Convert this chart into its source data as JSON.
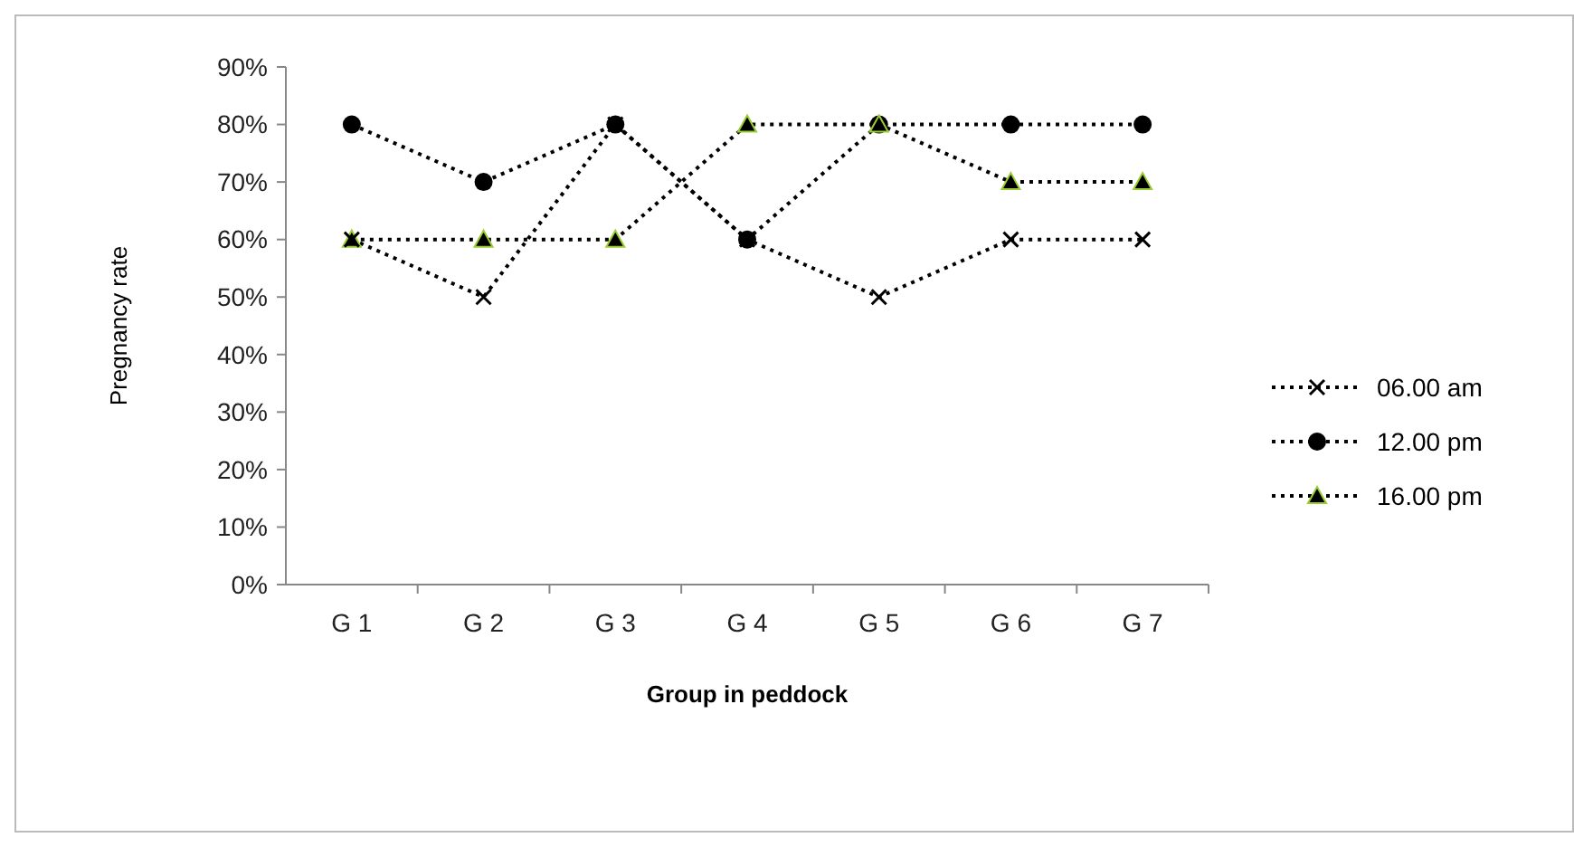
{
  "chart_data": {
    "type": "line",
    "xlabel": "Group in peddock",
    "ylabel": "Pregnancy rate",
    "categories": [
      "G 1",
      "G 2",
      "G 3",
      "G 4",
      "G 5",
      "G 6",
      "G 7"
    ],
    "series": [
      {
        "name": "06.00 am",
        "color": "#000000",
        "marker": "cross",
        "values": [
          60,
          50,
          80,
          60,
          50,
          60,
          60
        ]
      },
      {
        "name": "12.00 pm",
        "color": "#000000",
        "marker": "circle",
        "values": [
          80,
          70,
          80,
          60,
          80,
          80,
          80
        ]
      },
      {
        "name": "16.00 pm",
        "color": "#000000",
        "marker": "triangle",
        "values": [
          60,
          60,
          60,
          80,
          80,
          70,
          70
        ]
      }
    ],
    "ylim": [
      0,
      90
    ],
    "yticks": [
      {
        "value": 0,
        "label": "0%"
      },
      {
        "value": 10,
        "label": "10%"
      },
      {
        "value": 20,
        "label": "20%"
      },
      {
        "value": 30,
        "label": "30%"
      },
      {
        "value": 40,
        "label": "40%"
      },
      {
        "value": 50,
        "label": "50%"
      },
      {
        "value": 60,
        "label": "60%"
      },
      {
        "value": 70,
        "label": "70%"
      },
      {
        "value": 80,
        "label": "80%"
      },
      {
        "value": 90,
        "label": "90%"
      }
    ],
    "line_style": "dotted",
    "legend": "right",
    "grid": false
  }
}
